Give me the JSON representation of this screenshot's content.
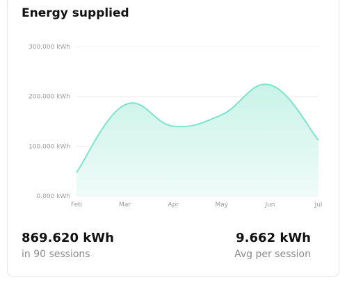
{
  "card": {
    "title": "Energy supplied",
    "total_value": "869.620 kWh",
    "total_label": "in 90 sessions",
    "avg_value": "9.662 kWh",
    "avg_label": "Avg per session"
  },
  "colors": {
    "line": "#7de3cc",
    "fill_top": "#c9f3e8",
    "fill_bottom": "#effbf8",
    "grid": "#efefef",
    "tick_text": "#9a9a9a"
  },
  "chart_data": {
    "type": "area",
    "title": "Energy supplied",
    "x": [
      "Feb",
      "Mar",
      "Apr",
      "May",
      "Jun",
      "Jul"
    ],
    "y_ticks": [
      "0.000 kWh",
      "100.000 kWh",
      "200.000 kWh",
      "300.000 kWh"
    ],
    "ylim": [
      0,
      300000
    ],
    "grid": true,
    "series": [
      {
        "points": [
          {
            "x": "Feb",
            "y": 47000
          },
          {
            "x": "Mar",
            "y": 183000
          },
          {
            "x": "Apr",
            "y": 140000
          },
          {
            "x": "May",
            "y": 163000
          },
          {
            "x": "Jun",
            "y": 223000
          },
          {
            "x": "Jul",
            "y": 112000
          }
        ]
      }
    ]
  }
}
